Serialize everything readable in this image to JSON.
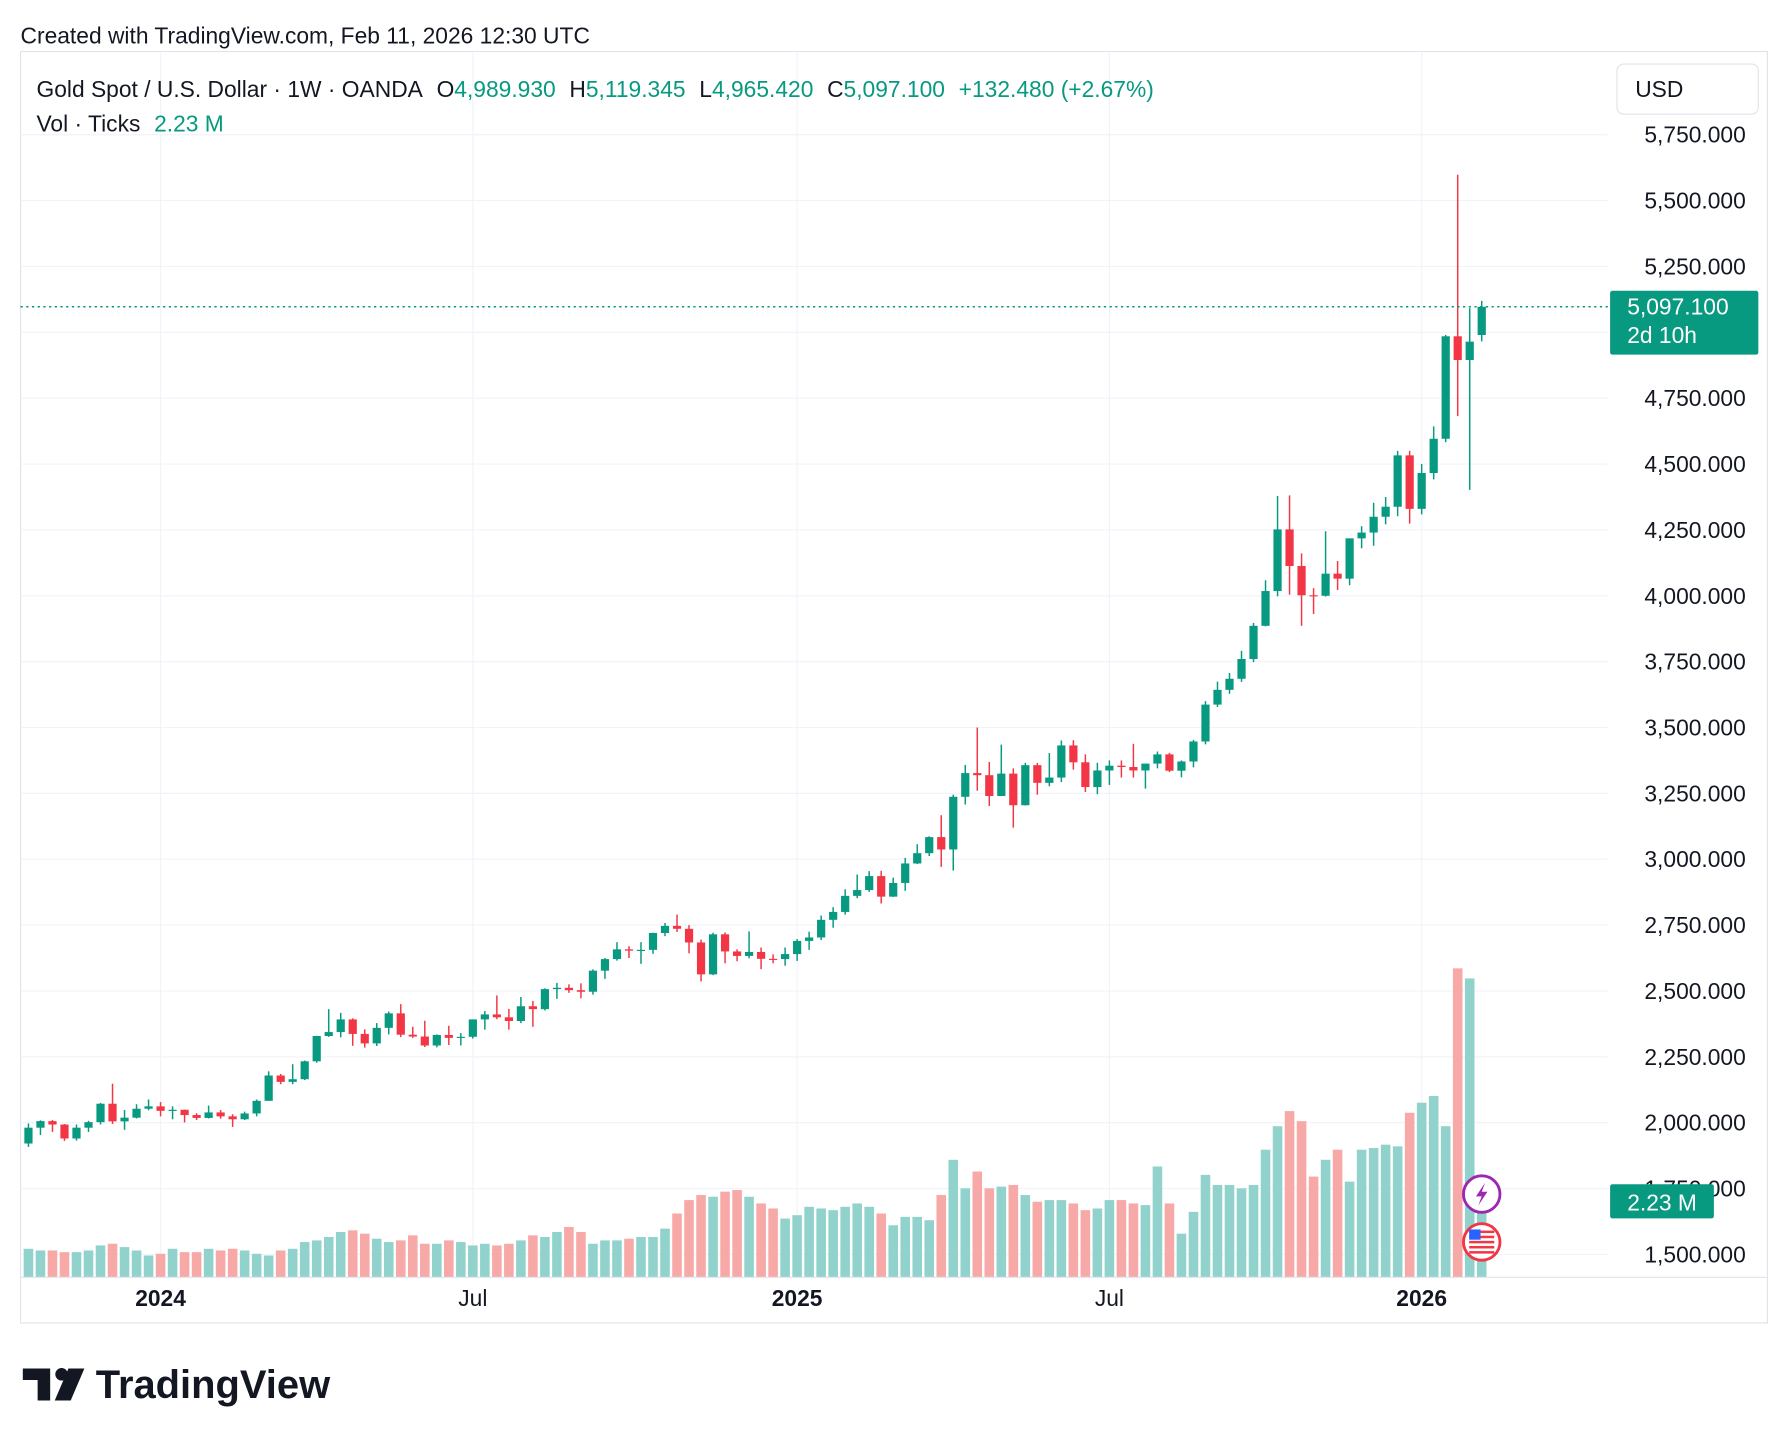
{
  "chart_data": {
    "type": "candlestick",
    "credit": "Created with TradingView.com, Feb 11, 2026 12:30 UTC",
    "title": "Gold Spot / U.S. Dollar · 1W · OANDA",
    "ohlc": [
      {
        "key": "O",
        "value": "4,989.930"
      },
      {
        "key": "H",
        "value": "5,119.345"
      },
      {
        "key": "L",
        "value": "4,965.420"
      },
      {
        "key": "C",
        "value": "5,097.100"
      }
    ],
    "change": "+132.480 (+2.67%)",
    "volume_title": "Vol · Ticks",
    "volume_label": "2.23 M",
    "currency": "USD",
    "last_price_label": "5,097.100",
    "countdown": "2d 10h",
    "brand": "TradingView",
    "up_color": "#089981",
    "down_color": "#f23645",
    "up_volume_color": "#92d2cc",
    "down_volume_color": "#f7a9a7",
    "grid": true,
    "xlim": [
      -0.66,
      131.5
    ],
    "xticks": [
      {
        "value": 11,
        "label": "2024"
      },
      {
        "value": 37,
        "label": "Jul"
      },
      {
        "value": 64,
        "label": "2025"
      },
      {
        "value": 90,
        "label": "Jul"
      },
      {
        "value": 116,
        "label": "2026"
      }
    ],
    "ylim": [
      1413,
      6066
    ],
    "yticks": [
      {
        "value": 1500,
        "label": "1,500.000"
      },
      {
        "value": 1750,
        "label": "1,750.000"
      },
      {
        "value": 2000,
        "label": "2,000.000"
      },
      {
        "value": 2250,
        "label": "2,250.000"
      },
      {
        "value": 2500,
        "label": "2,500.000"
      },
      {
        "value": 2750,
        "label": "2,750.000"
      },
      {
        "value": 3000,
        "label": "3,000.000"
      },
      {
        "value": 3250,
        "label": "3,250.000"
      },
      {
        "value": 3500,
        "label": "3,500.000"
      },
      {
        "value": 3750,
        "label": "3,750.000"
      },
      {
        "value": 4000,
        "label": "4,000.000"
      },
      {
        "value": 4250,
        "label": "4,250.000"
      },
      {
        "value": 4500,
        "label": "4,500.000"
      },
      {
        "value": 4750,
        "label": "4,750.000"
      },
      {
        "value": 5000,
        "label": "5,000.000"
      },
      {
        "value": 5250,
        "label": "5,250.000"
      },
      {
        "value": 5500,
        "label": "5,500.000"
      },
      {
        "value": 5750,
        "label": "5,750.000"
      }
    ],
    "volume_ylim": [
      0,
      36.5
    ],
    "open": [
      1921,
      1981,
      2006,
      1993,
      1940,
      1981,
      2002,
      2072,
      2005,
      2019,
      2053,
      2062,
      2045,
      2049,
      2029,
      2018,
      2039,
      2024,
      2013,
      2035,
      2083,
      2179,
      2155,
      2165,
      2233,
      2329,
      2344,
      2392,
      2337,
      2301,
      2360,
      2415,
      2334,
      2327,
      2293,
      2333,
      2322,
      2326,
      2392,
      2411,
      2400,
      2386,
      2442,
      2431,
      2507,
      2512,
      2503,
      2497,
      2577,
      2621,
      2658,
      2653,
      2656,
      2720,
      2747,
      2736,
      2684,
      2563,
      2715,
      2650,
      2633,
      2648,
      2622,
      2621,
      2640,
      2690,
      2703,
      2770,
      2800,
      2861,
      2883,
      2936,
      2858,
      2910,
      2984,
      3023,
      3084,
      3037,
      3237,
      3327,
      3319,
      3240,
      3325,
      3205,
      3357,
      3290,
      3310,
      3432,
      3368,
      3274,
      3337,
      3355,
      3350,
      3337,
      3363,
      3398,
      3336,
      3371,
      3447,
      3587,
      3643,
      3685,
      3760,
      3886,
      4018,
      4252,
      4113,
      4002,
      4000,
      4084,
      4065,
      4218,
      4240,
      4300,
      4338,
      4533,
      4330,
      4466,
      4596,
      4985,
      4895,
      4989.93
    ],
    "high": [
      1997,
      2009,
      2010,
      1995,
      1993,
      2007,
      2075,
      2148,
      2048,
      2070,
      2088,
      2078,
      2062,
      2050,
      2036,
      2065,
      2048,
      2032,
      2042,
      2088,
      2195,
      2185,
      2222,
      2236,
      2330,
      2431,
      2417,
      2396,
      2354,
      2378,
      2422,
      2450,
      2364,
      2387,
      2335,
      2368,
      2340,
      2392,
      2424,
      2483,
      2432,
      2477,
      2462,
      2510,
      2531,
      2525,
      2529,
      2582,
      2625,
      2685,
      2670,
      2685,
      2721,
      2758,
      2790,
      2750,
      2695,
      2721,
      2722,
      2658,
      2726,
      2665,
      2639,
      2665,
      2697,
      2725,
      2786,
      2818,
      2886,
      2942,
      2955,
      2956,
      2930,
      3005,
      3057,
      3087,
      3167,
      3245,
      3358,
      3500,
      3369,
      3435,
      3345,
      3366,
      3366,
      3403,
      3451,
      3452,
      3398,
      3366,
      3375,
      3375,
      3438,
      3363,
      3409,
      3404,
      3375,
      3453,
      3600,
      3674,
      3707,
      3791,
      3897,
      4059,
      4379,
      4381,
      4161,
      4029,
      4245,
      4132,
      4218,
      4264,
      4353,
      4375,
      4550,
      4550,
      4500,
      4643,
      4990,
      5598,
      5092,
      5119.345
    ],
    "low": [
      1908,
      1953,
      1965,
      1931,
      1932,
      1965,
      1993,
      1995,
      1973,
      2016,
      2047,
      2024,
      2013,
      2001,
      2010,
      2016,
      2015,
      1984,
      2010,
      2024,
      2083,
      2146,
      2146,
      2162,
      2228,
      2326,
      2324,
      2292,
      2285,
      2291,
      2335,
      2325,
      2322,
      2287,
      2286,
      2295,
      2293,
      2319,
      2353,
      2393,
      2353,
      2378,
      2364,
      2426,
      2470,
      2493,
      2472,
      2486,
      2546,
      2615,
      2625,
      2603,
      2641,
      2708,
      2724,
      2643,
      2536,
      2560,
      2605,
      2613,
      2624,
      2583,
      2605,
      2596,
      2614,
      2656,
      2693,
      2740,
      2790,
      2852,
      2876,
      2832,
      2857,
      2880,
      2982,
      3012,
      2971,
      2957,
      3208,
      3260,
      3202,
      3240,
      3120,
      3204,
      3245,
      3277,
      3293,
      3340,
      3255,
      3247,
      3282,
      3310,
      3310,
      3268,
      3345,
      3331,
      3311,
      3349,
      3436,
      3578,
      3628,
      3673,
      3748,
      3884,
      3998,
      4004,
      3886,
      3931,
      3997,
      4022,
      4040,
      4180,
      4190,
      4271,
      4302,
      4274,
      4309,
      4442,
      4583,
      4682,
      4402,
      4965.42
    ],
    "close": [
      1981,
      2006,
      1993,
      1940,
      1981,
      2002,
      2072,
      2005,
      2019,
      2053,
      2062,
      2045,
      2049,
      2029,
      2018,
      2039,
      2024,
      2013,
      2035,
      2083,
      2179,
      2155,
      2165,
      2233,
      2329,
      2344,
      2392,
      2337,
      2301,
      2360,
      2415,
      2334,
      2327,
      2293,
      2333,
      2322,
      2326,
      2392,
      2411,
      2400,
      2386,
      2442,
      2431,
      2507,
      2512,
      2503,
      2497,
      2577,
      2621,
      2658,
      2653,
      2656,
      2720,
      2747,
      2736,
      2684,
      2563,
      2715,
      2650,
      2633,
      2648,
      2622,
      2621,
      2640,
      2690,
      2703,
      2770,
      2800,
      2861,
      2883,
      2936,
      2858,
      2910,
      2984,
      3023,
      3084,
      3037,
      3237,
      3327,
      3319,
      3240,
      3325,
      3205,
      3357,
      3290,
      3310,
      3432,
      3368,
      3274,
      3337,
      3355,
      3350,
      3337,
      3363,
      3398,
      3336,
      3371,
      3447,
      3587,
      3643,
      3685,
      3760,
      3886,
      4018,
      4252,
      4113,
      4002,
      4000,
      4084,
      4065,
      4218,
      4240,
      4300,
      4338,
      4533,
      4330,
      4466,
      4596,
      4985,
      4895,
      4964.62,
      5097.1
    ],
    "volume": [
      0.85,
      0.8,
      0.8,
      0.75,
      0.75,
      0.8,
      0.95,
      1.0,
      0.9,
      0.8,
      0.65,
      0.7,
      0.85,
      0.75,
      0.75,
      0.85,
      0.8,
      0.85,
      0.8,
      0.7,
      0.65,
      0.8,
      0.85,
      1.05,
      1.1,
      1.2,
      1.35,
      1.4,
      1.3,
      1.15,
      1.05,
      1.1,
      1.25,
      1.0,
      1.0,
      1.1,
      1.05,
      0.95,
      1.0,
      0.95,
      1.0,
      1.1,
      1.25,
      1.2,
      1.35,
      1.5,
      1.35,
      1.0,
      1.1,
      1.1,
      1.15,
      1.2,
      1.2,
      1.45,
      1.9,
      2.3,
      2.45,
      2.4,
      2.55,
      2.6,
      2.4,
      2.2,
      2.05,
      1.75,
      1.85,
      2.1,
      2.05,
      2.0,
      2.1,
      2.2,
      2.1,
      1.9,
      1.55,
      1.8,
      1.8,
      1.7,
      2.45,
      3.5,
      2.65,
      3.15,
      2.65,
      2.7,
      2.75,
      2.45,
      2.25,
      2.3,
      2.3,
      2.2,
      2.0,
      2.05,
      2.3,
      2.3,
      2.2,
      2.15,
      3.3,
      2.2,
      1.3,
      1.95,
      3.05,
      2.75,
      2.75,
      2.65,
      2.75,
      3.8,
      4.5,
      4.95,
      4.65,
      3.0,
      3.5,
      3.8,
      2.85,
      3.8,
      3.85,
      3.95,
      3.9,
      4.9,
      5.2,
      5.4,
      4.5,
      9.2,
      8.9,
      2.23
    ]
  }
}
